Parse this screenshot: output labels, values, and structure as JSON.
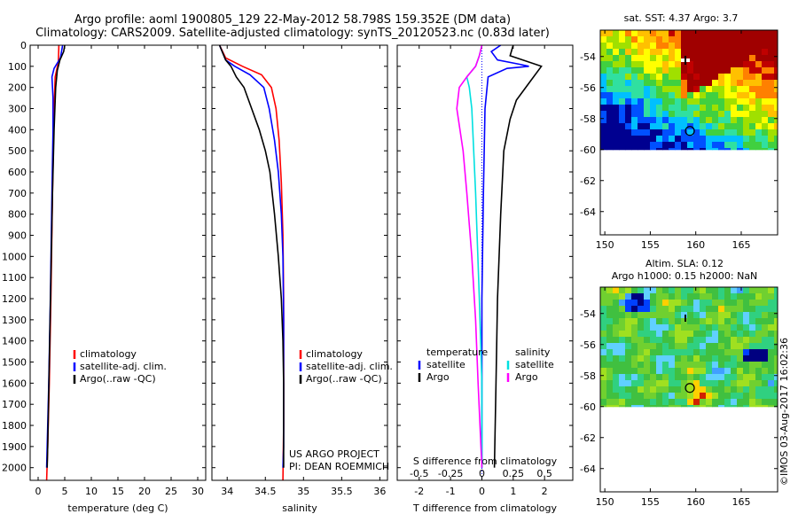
{
  "header": {
    "line1": "Argo profile: aoml 1900805_129 22-May-2012 58.798S 159.352E (DM data)",
    "line2": "Climatology: CARS2009. Satellite-adjusted climatology: synTS_20120523.nc (0.83d later)"
  },
  "colors": {
    "climatology": "#ff0000",
    "satellite": "#0000ff",
    "argo": "#000000",
    "sal_satellite": "#00e0e0",
    "sal_argo": "#ff00ff"
  },
  "credit": "©IMOS 03-Aug-2017 16:02:36",
  "chart_data": [
    {
      "id": "temperature",
      "type": "line",
      "xlabel": "temperature (deg C)",
      "xlim": [
        -1.5,
        31.5
      ],
      "xticks": [
        0,
        5,
        10,
        15,
        20,
        25,
        30
      ],
      "xtick_labels": [
        "0",
        "5",
        "10",
        "15",
        "20",
        "25",
        "30"
      ],
      "ylim": [
        2060,
        0
      ],
      "yticks": [
        0,
        100,
        200,
        300,
        400,
        500,
        600,
        700,
        800,
        900,
        1000,
        1100,
        1200,
        1300,
        1400,
        1500,
        1600,
        1700,
        1800,
        1900,
        2000
      ],
      "legend": [
        "climatology",
        "satellite-adj. clim.",
        "Argo(..raw -QC)"
      ],
      "series": [
        {
          "name": "climatology",
          "color": "#ff0000",
          "points": [
            [
              3.9,
              0
            ],
            [
              3.8,
              80
            ],
            [
              3.2,
              150
            ],
            [
              3.0,
              300
            ],
            [
              2.7,
              700
            ],
            [
              2.4,
              1200
            ],
            [
              2.1,
              1600
            ],
            [
              1.8,
              1900
            ],
            [
              1.6,
              2060
            ]
          ]
        },
        {
          "name": "satellite-adj. clim.",
          "color": "#0000ff",
          "points": [
            [
              4.6,
              0
            ],
            [
              4.2,
              60
            ],
            [
              3.0,
              110
            ],
            [
              2.6,
              150
            ],
            [
              2.8,
              250
            ],
            [
              2.8,
              400
            ],
            [
              2.6,
              700
            ],
            [
              2.3,
              1200
            ],
            [
              2.0,
              1600
            ],
            [
              1.7,
              1900
            ],
            [
              1.6,
              2000
            ]
          ]
        },
        {
          "name": "Argo(..raw -QC)",
          "color": "#000000",
          "points": [
            [
              5.0,
              0
            ],
            [
              4.8,
              30
            ],
            [
              4.1,
              70
            ],
            [
              3.6,
              120
            ],
            [
              3.3,
              200
            ],
            [
              3.0,
              400
            ],
            [
              2.7,
              700
            ],
            [
              2.4,
              1100
            ],
            [
              2.1,
              1500
            ],
            [
              1.8,
              1900
            ],
            [
              1.7,
              2000
            ]
          ]
        }
      ]
    },
    {
      "id": "salinity",
      "type": "line",
      "xlabel": "salinity",
      "xlim": [
        33.8,
        36.1
      ],
      "xticks": [
        34,
        34.5,
        35,
        35.5,
        36
      ],
      "xtick_labels": [
        "34",
        "34.5",
        "35",
        "35.5",
        "36"
      ],
      "ylim": [
        2060,
        0
      ],
      "legend": [
        "climatology",
        "satellite-adj. clim.",
        "Argo(..raw -QC)"
      ],
      "annotation": [
        "US ARGO PROJECT",
        "PI: DEAN ROEMMICH"
      ],
      "series": [
        {
          "name": "climatology",
          "color": "#ff0000",
          "points": [
            [
              33.9,
              0
            ],
            [
              33.98,
              60
            ],
            [
              34.2,
              100
            ],
            [
              34.45,
              140
            ],
            [
              34.58,
              200
            ],
            [
              34.64,
              300
            ],
            [
              34.68,
              450
            ],
            [
              34.71,
              650
            ],
            [
              34.73,
              900
            ],
            [
              34.74,
              1200
            ],
            [
              34.74,
              1500
            ],
            [
              34.74,
              1800
            ],
            [
              34.73,
              2060
            ]
          ]
        },
        {
          "name": "satellite-adj. clim.",
          "color": "#0000ff",
          "points": [
            [
              33.9,
              0
            ],
            [
              33.98,
              70
            ],
            [
              34.1,
              100
            ],
            [
              34.3,
              140
            ],
            [
              34.48,
              200
            ],
            [
              34.55,
              300
            ],
            [
              34.62,
              450
            ],
            [
              34.67,
              600
            ],
            [
              34.71,
              800
            ],
            [
              34.73,
              1000
            ],
            [
              34.74,
              1300
            ],
            [
              34.74,
              1600
            ],
            [
              34.74,
              1900
            ],
            [
              34.73,
              2000
            ]
          ]
        },
        {
          "name": "Argo(..raw -QC)",
          "color": "#000000",
          "points": [
            [
              33.9,
              0
            ],
            [
              33.98,
              70
            ],
            [
              34.05,
              100
            ],
            [
              34.12,
              150
            ],
            [
              34.22,
              200
            ],
            [
              34.32,
              300
            ],
            [
              34.42,
              400
            ],
            [
              34.5,
              500
            ],
            [
              34.56,
              600
            ],
            [
              34.62,
              800
            ],
            [
              34.67,
              1000
            ],
            [
              34.71,
              1200
            ],
            [
              34.73,
              1400
            ],
            [
              34.74,
              1600
            ],
            [
              34.74,
              1900
            ],
            [
              34.74,
              2000
            ]
          ]
        }
      ]
    },
    {
      "id": "differences",
      "type": "line",
      "xlabel": "T difference from climatology",
      "xlabel_top": "S difference from climatology",
      "xlim": [
        -2.7,
        2.9
      ],
      "xticks": [
        -2,
        -1,
        0,
        1,
        2
      ],
      "xtick_labels": [
        "-2",
        "-1",
        "0",
        "1",
        "2"
      ],
      "sticks": [
        -0.5,
        -0.25,
        0,
        0.25,
        0.5
      ],
      "stick_labels": [
        "-0.5",
        "-0.25",
        "0",
        "0.25",
        "0.5"
      ],
      "s_scale": 4,
      "ylim": [
        2060,
        0
      ],
      "legend_groups": [
        {
          "title": "temperature",
          "items": [
            "satellite",
            "Argo"
          ]
        },
        {
          "title": "salinity",
          "items": [
            "satellite",
            "Argo"
          ]
        }
      ],
      "series": [
        {
          "name": "temperature satellite",
          "color": "#0000ff",
          "points": [
            [
              0.6,
              0
            ],
            [
              0.3,
              30
            ],
            [
              0.5,
              70
            ],
            [
              1.2,
              90
            ],
            [
              1.5,
              100
            ],
            [
              0.8,
              110
            ],
            [
              0.2,
              150
            ],
            [
              0.1,
              300
            ],
            [
              0.05,
              700
            ],
            [
              0.0,
              1200
            ],
            [
              0.0,
              2000
            ]
          ]
        },
        {
          "name": "temperature Argo",
          "color": "#000000",
          "points": [
            [
              1.0,
              0
            ],
            [
              0.9,
              50
            ],
            [
              1.9,
              100
            ],
            [
              1.5,
              180
            ],
            [
              1.1,
              260
            ],
            [
              0.9,
              350
            ],
            [
              0.7,
              500
            ],
            [
              0.6,
              800
            ],
            [
              0.5,
              1200
            ],
            [
              0.45,
              1600
            ],
            [
              0.4,
              2000
            ]
          ]
        },
        {
          "name": "salinity satellite",
          "color": "#00e0e0",
          "points": [
            [
              0.0,
              0
            ],
            [
              -0.02,
              50
            ],
            [
              -0.05,
              100
            ],
            [
              -0.12,
              150
            ],
            [
              -0.1,
              200
            ],
            [
              -0.08,
              300
            ],
            [
              -0.05,
              700
            ],
            [
              -0.02,
              1200
            ],
            [
              0.0,
              1600
            ],
            [
              0.0,
              2000
            ]
          ]
        },
        {
          "name": "salinity Argo",
          "color": "#ff00ff",
          "points": [
            [
              0.0,
              0
            ],
            [
              -0.02,
              50
            ],
            [
              -0.05,
              100
            ],
            [
              -0.12,
              150
            ],
            [
              -0.18,
              200
            ],
            [
              -0.2,
              300
            ],
            [
              -0.15,
              500
            ],
            [
              -0.12,
              700
            ],
            [
              -0.08,
              1000
            ],
            [
              -0.05,
              1300
            ],
            [
              -0.03,
              1600
            ],
            [
              0.0,
              2000
            ]
          ]
        }
      ]
    },
    {
      "id": "sst-map",
      "type": "heatmap",
      "title": "sat. SST: 4.37 Argo: 3.7",
      "xlim": [
        149.5,
        169
      ],
      "ylim": [
        -65.5,
        -52.3
      ],
      "data_lat_range": [
        -60,
        -52.3
      ],
      "xticks": [
        150,
        155,
        160,
        165
      ],
      "yticks": [
        -54,
        -56,
        -58,
        -60,
        -62,
        -64
      ],
      "argo_location": [
        159.352,
        -58.798
      ]
    },
    {
      "id": "sla-map",
      "type": "heatmap",
      "title_line1": "Altim. SLA: 0.12",
      "title_line2": "Argo h1000: 0.15 h2000: NaN",
      "xlim": [
        149.5,
        169
      ],
      "ylim": [
        -65.5,
        -52.3
      ],
      "data_lat_range": [
        -60,
        -52.3
      ],
      "xticks": [
        150,
        155,
        160,
        165
      ],
      "yticks": [
        -54,
        -56,
        -58,
        -60,
        -62,
        -64
      ],
      "argo_location": [
        159.352,
        -58.798
      ]
    }
  ]
}
